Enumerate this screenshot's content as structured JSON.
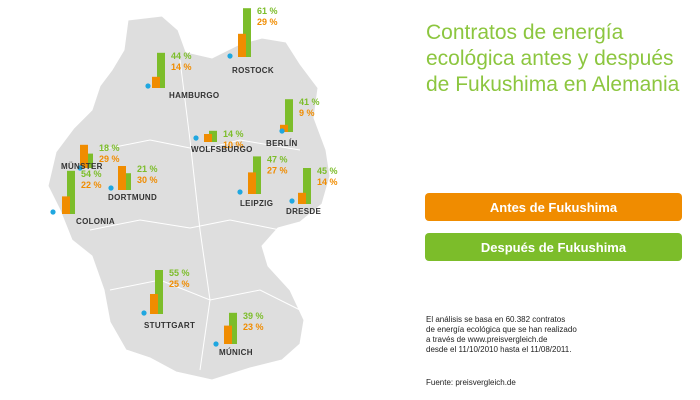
{
  "title": "Contratos de energía ecológica antes y después de Fukushima en Alemania",
  "legend": {
    "before": {
      "label": "Antes de Fukushima",
      "color": "#f08c00"
    },
    "after": {
      "label": "Después de Fukushima",
      "color": "#7cbd2a"
    }
  },
  "note": "El análisis se basa en 60.382 contratos\nde energía ecológica que se han realizado\na través de www.preisvergleich.de\ndesde el 11/10/2010 hasta el 11/08/2011.",
  "source": "Fuente: preisvergleich.de",
  "colors": {
    "map": "#dedede",
    "map_border": "#ffffff",
    "dot": "#1fa7e0",
    "title": "#8cc63f"
  },
  "chart_data": {
    "type": "bar",
    "unit": "%",
    "categories": [
      "Rostock",
      "Hamburgo",
      "Berlín",
      "Wolfsburgo",
      "Münster",
      "Dortmund",
      "Colonia",
      "Leipzig",
      "Dresde",
      "Stuttgart",
      "Múnich"
    ],
    "series": [
      {
        "name": "Antes de Fukushima",
        "values": [
          29,
          14,
          9,
          10,
          29,
          30,
          22,
          27,
          14,
          25,
          23
        ]
      },
      {
        "name": "Después de Fukushima",
        "values": [
          61,
          44,
          41,
          14,
          18,
          21,
          54,
          47,
          45,
          55,
          39
        ]
      }
    ],
    "cities": [
      {
        "name": "ROSTOCK",
        "before_label": "29 %",
        "after_label": "61 %"
      },
      {
        "name": "HAMBURGO",
        "before_label": "14 %",
        "after_label": "44 %"
      },
      {
        "name": "BERLÍN",
        "before_label": "9 %",
        "after_label": "41 %"
      },
      {
        "name": "WOLFSBURGO",
        "before_label": "10 %",
        "after_label": "14 %"
      },
      {
        "name": "MÜNSTER",
        "before_label": "29 %",
        "after_label": "18 %"
      },
      {
        "name": "DORTMUND",
        "before_label": "30 %",
        "after_label": "21 %"
      },
      {
        "name": "COLONIA",
        "before_label": "22 %",
        "after_label": "54 %"
      },
      {
        "name": "LEIPZIG",
        "before_label": "27 %",
        "after_label": "47 %"
      },
      {
        "name": "DRESDE",
        "before_label": "14 %",
        "after_label": "45 %"
      },
      {
        "name": "STUTTGART",
        "before_label": "25 %",
        "after_label": "55 %"
      },
      {
        "name": "MÚNICH",
        "before_label": "23 %",
        "after_label": "39 %"
      }
    ]
  }
}
